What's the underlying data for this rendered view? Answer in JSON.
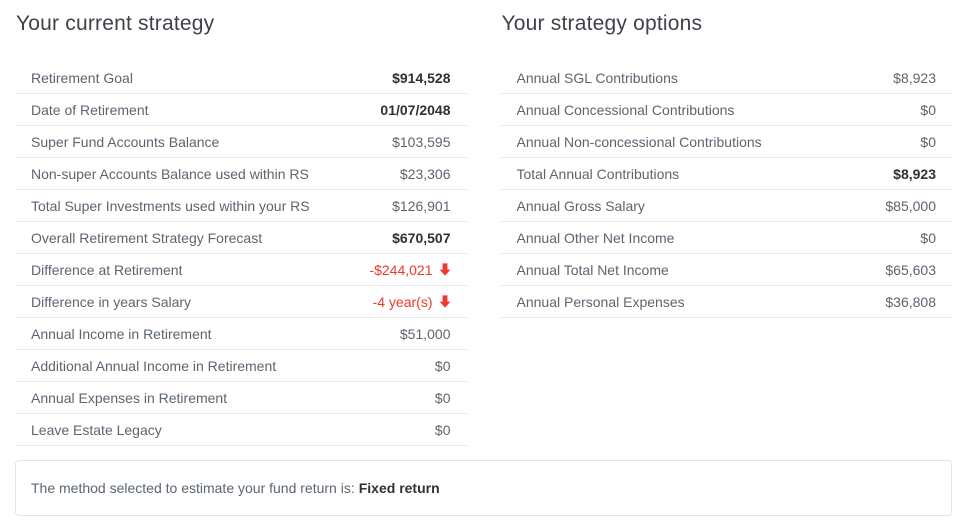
{
  "colors": {
    "negative": "#ee382b",
    "title": "#3e4349",
    "label": "#5b6570",
    "value_strong": "#2d3237",
    "divider": "#e7e8ea",
    "note_border": "#dfe5ea"
  },
  "tables": [
    {
      "title": "Your current strategy",
      "rows": [
        {
          "label": "Retirement Goal",
          "value": "$914,528",
          "bold": true
        },
        {
          "label": "Date of Retirement",
          "value": "01/07/2048",
          "bold": true
        },
        {
          "label": "Super Fund Accounts Balance",
          "value": "$103,595"
        },
        {
          "label": "Non-super Accounts Balance used within RS",
          "value": "$23,306"
        },
        {
          "label": "Total Super Investments used within your RS",
          "value": "$126,901"
        },
        {
          "label": "Overall Retirement Strategy Forecast",
          "value": "$670,507",
          "bold": true
        },
        {
          "label": "Difference at Retirement",
          "value": "-$244,021",
          "negative": true,
          "arrow": "down"
        },
        {
          "label": "Difference in years Salary",
          "value": "-4 year(s)",
          "negative": true,
          "arrow": "down"
        },
        {
          "label": "Annual Income in Retirement",
          "value": "$51,000"
        },
        {
          "label": "Additional Annual Income in Retirement",
          "value": "$0"
        },
        {
          "label": "Annual Expenses in Retirement",
          "value": "$0"
        },
        {
          "label": "Leave Estate Legacy",
          "value": "$0"
        }
      ]
    },
    {
      "title": "Your strategy options",
      "rows": [
        {
          "label": "Annual SGL Contributions",
          "value": "$8,923"
        },
        {
          "label": "Annual Concessional Contributions",
          "value": "$0"
        },
        {
          "label": "Annual Non-concessional Contributions",
          "value": "$0"
        },
        {
          "label": "Total Annual Contributions",
          "value": "$8,923",
          "bold": true
        },
        {
          "label": "Annual Gross Salary",
          "value": "$85,000"
        },
        {
          "label": "Annual Other Net Income",
          "value": "$0"
        },
        {
          "label": "Annual Total Net Income",
          "value": "$65,603"
        },
        {
          "label": "Annual Personal Expenses",
          "value": "$36,808"
        }
      ]
    }
  ],
  "note": {
    "text": "The method selected to estimate your fund return is:",
    "value": "Fixed return"
  }
}
